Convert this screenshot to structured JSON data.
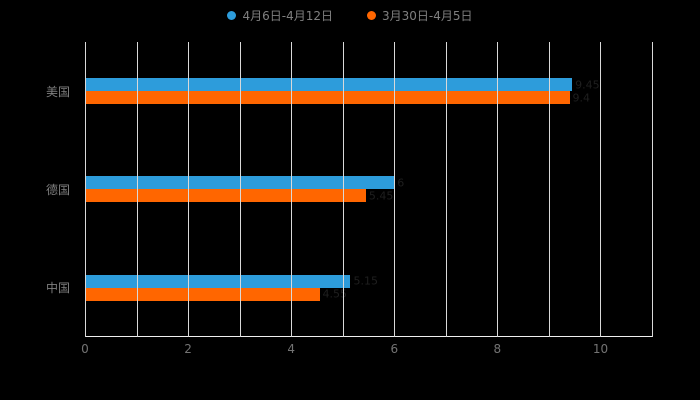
{
  "chart_data": {
    "type": "bar",
    "orientation": "horizontal",
    "title": "",
    "categories": [
      "美国",
      "德国",
      "中国"
    ],
    "series": [
      {
        "name": "4月6日-4月12日",
        "color": "#2D9CDB",
        "values": [
          9.45,
          6.0,
          5.15
        ]
      },
      {
        "name": "3月30日-4月5日",
        "color": "#FF6600",
        "values": [
          9.4,
          5.45,
          4.55
        ]
      }
    ],
    "xlabel": "",
    "ylabel": "",
    "xlim": [
      0,
      11
    ],
    "x_ticks": [
      0,
      2,
      4,
      6,
      8,
      10
    ],
    "grid": true,
    "gridline_color": "#d9d9d9",
    "legend_position": "top",
    "background_color": "#000000",
    "label_color": "#7f7f7f",
    "bar_value_label_color": "#1f1f1f"
  }
}
